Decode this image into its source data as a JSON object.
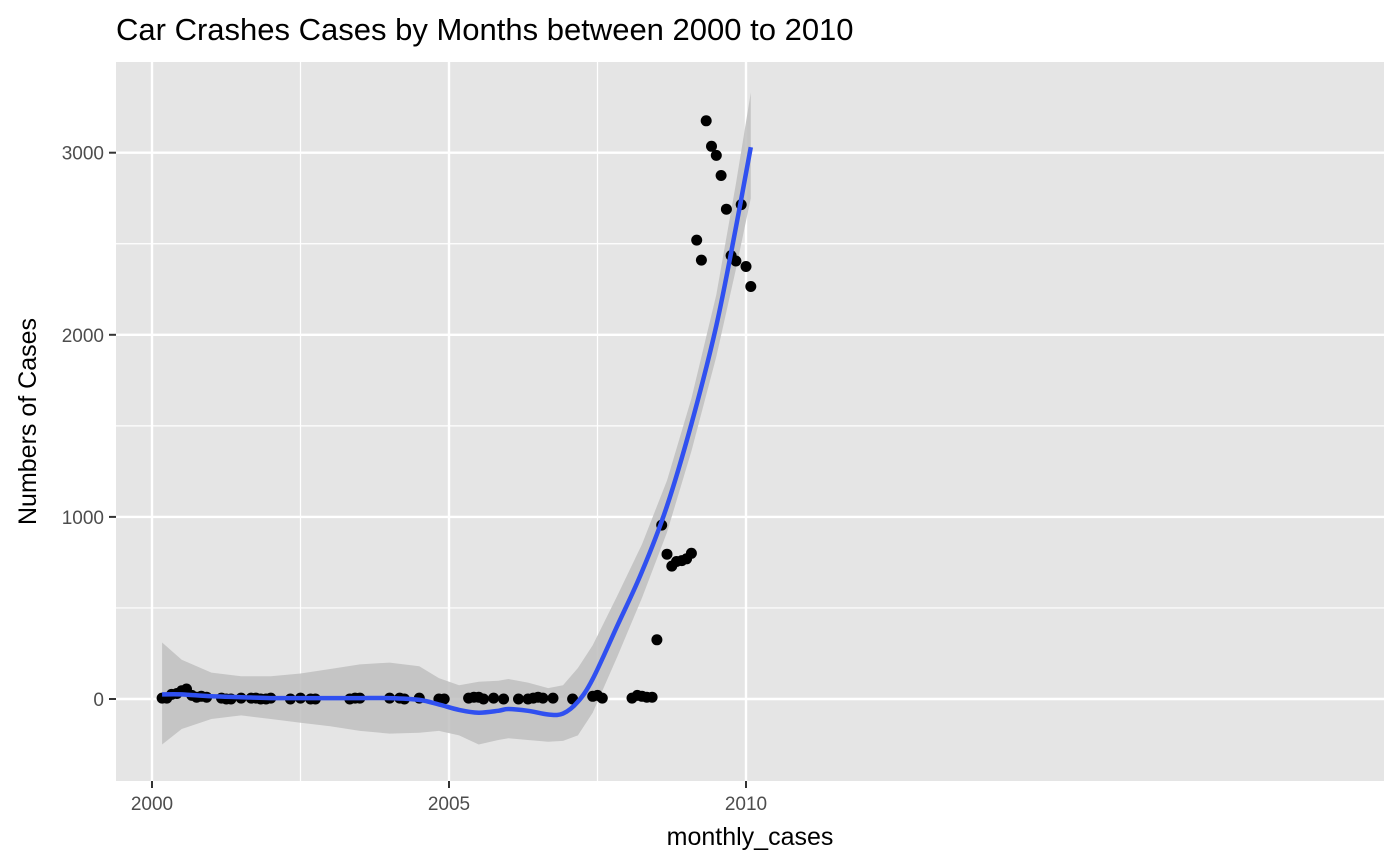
{
  "chart_data": {
    "type": "scatter",
    "title": "Car Crashes Cases by Months between 2000 to 2010",
    "xlabel": "monthly_cases",
    "ylabel": "Numbers of Cases",
    "xlim": [
      1999.65,
      2010.7
    ],
    "ylim": [
      -450,
      3500
    ],
    "x_ticks": [
      {
        "value": 2000,
        "label": "2000"
      },
      {
        "value": 2005,
        "label": "2005"
      },
      {
        "value": 2010,
        "label": "2010"
      }
    ],
    "y_ticks": [
      {
        "value": 0,
        "label": "0"
      },
      {
        "value": 1000,
        "label": "1000"
      },
      {
        "value": 2000,
        "label": "2000"
      },
      {
        "value": 3000,
        "label": "3000"
      }
    ],
    "x_minor_grid": [
      2002.5,
      2007.5
    ],
    "y_minor_grid": [
      500,
      1500,
      2500
    ],
    "grid": true,
    "legend": "none",
    "colors": {
      "panel": "#E5E5E5",
      "grid": "#FFFFFF",
      "points": "#000000",
      "smooth_line": "#3050F0",
      "ribbon": "#BFBFBF"
    },
    "series": [
      {
        "name": "monthly cases",
        "points": [
          {
            "x": 2000.17,
            "y": 5
          },
          {
            "x": 2000.25,
            "y": 5
          },
          {
            "x": 2000.33,
            "y": 25
          },
          {
            "x": 2000.42,
            "y": 30
          },
          {
            "x": 2000.5,
            "y": 45
          },
          {
            "x": 2000.58,
            "y": 55
          },
          {
            "x": 2000.67,
            "y": 20
          },
          {
            "x": 2000.75,
            "y": 10
          },
          {
            "x": 2000.83,
            "y": 15
          },
          {
            "x": 2000.92,
            "y": 10
          },
          {
            "x": 2001.17,
            "y": 5
          },
          {
            "x": 2001.25,
            "y": 0
          },
          {
            "x": 2001.33,
            "y": 0
          },
          {
            "x": 2001.5,
            "y": 5
          },
          {
            "x": 2001.67,
            "y": 5
          },
          {
            "x": 2001.75,
            "y": 5
          },
          {
            "x": 2001.83,
            "y": 0
          },
          {
            "x": 2001.92,
            "y": 0
          },
          {
            "x": 2002.0,
            "y": 5
          },
          {
            "x": 2002.33,
            "y": 0
          },
          {
            "x": 2002.5,
            "y": 5
          },
          {
            "x": 2002.67,
            "y": 0
          },
          {
            "x": 2002.75,
            "y": 0
          },
          {
            "x": 2003.33,
            "y": 0
          },
          {
            "x": 2003.42,
            "y": 5
          },
          {
            "x": 2003.5,
            "y": 5
          },
          {
            "x": 2004.0,
            "y": 5
          },
          {
            "x": 2004.17,
            "y": 5
          },
          {
            "x": 2004.25,
            "y": 0
          },
          {
            "x": 2004.5,
            "y": 5
          },
          {
            "x": 2004.83,
            "y": 0
          },
          {
            "x": 2004.92,
            "y": 0
          },
          {
            "x": 2005.33,
            "y": 5
          },
          {
            "x": 2005.42,
            "y": 10
          },
          {
            "x": 2005.5,
            "y": 10
          },
          {
            "x": 2005.58,
            "y": 0
          },
          {
            "x": 2005.75,
            "y": 5
          },
          {
            "x": 2005.92,
            "y": 0
          },
          {
            "x": 2006.17,
            "y": 0
          },
          {
            "x": 2006.33,
            "y": 0
          },
          {
            "x": 2006.42,
            "y": 5
          },
          {
            "x": 2006.5,
            "y": 10
          },
          {
            "x": 2006.58,
            "y": 5
          },
          {
            "x": 2006.75,
            "y": 5
          },
          {
            "x": 2007.08,
            "y": 0
          },
          {
            "x": 2007.42,
            "y": 15
          },
          {
            "x": 2007.5,
            "y": 20
          },
          {
            "x": 2007.58,
            "y": 5
          },
          {
            "x": 2008.08,
            "y": 5
          },
          {
            "x": 2008.17,
            "y": 20
          },
          {
            "x": 2008.25,
            "y": 15
          },
          {
            "x": 2008.33,
            "y": 10
          },
          {
            "x": 2008.42,
            "y": 10
          },
          {
            "x": 2008.5,
            "y": 325
          },
          {
            "x": 2008.58,
            "y": 955
          },
          {
            "x": 2008.67,
            "y": 795
          },
          {
            "x": 2008.75,
            "y": 730
          },
          {
            "x": 2008.83,
            "y": 755
          },
          {
            "x": 2008.92,
            "y": 760
          },
          {
            "x": 2009.0,
            "y": 770
          },
          {
            "x": 2009.08,
            "y": 800
          },
          {
            "x": 2009.17,
            "y": 2520
          },
          {
            "x": 2009.25,
            "y": 2410
          },
          {
            "x": 2009.33,
            "y": 3175
          },
          {
            "x": 2009.42,
            "y": 3035
          },
          {
            "x": 2009.5,
            "y": 2985
          },
          {
            "x": 2009.58,
            "y": 2875
          },
          {
            "x": 2009.67,
            "y": 2690
          },
          {
            "x": 2009.75,
            "y": 2435
          },
          {
            "x": 2009.83,
            "y": 2405
          },
          {
            "x": 2009.92,
            "y": 2715
          },
          {
            "x": 2010.0,
            "y": 2375
          },
          {
            "x": 2010.08,
            "y": 2265
          }
        ]
      }
    ],
    "smooth": {
      "method": "loess",
      "points": [
        {
          "x": 2000.17,
          "y": 25,
          "ymin": -250,
          "ymax": 310
        },
        {
          "x": 2000.5,
          "y": 25,
          "ymin": -165,
          "ymax": 215
        },
        {
          "x": 2001.0,
          "y": 15,
          "ymin": -110,
          "ymax": 145
        },
        {
          "x": 2001.5,
          "y": 10,
          "ymin": -90,
          "ymax": 125
        },
        {
          "x": 2002.0,
          "y": 5,
          "ymin": -110,
          "ymax": 125
        },
        {
          "x": 2002.5,
          "y": 5,
          "ymin": -130,
          "ymax": 140
        },
        {
          "x": 2003.0,
          "y": 5,
          "ymin": -150,
          "ymax": 165
        },
        {
          "x": 2003.5,
          "y": 5,
          "ymin": -175,
          "ymax": 190
        },
        {
          "x": 2004.0,
          "y": 5,
          "ymin": -190,
          "ymax": 200
        },
        {
          "x": 2004.5,
          "y": -5,
          "ymin": -185,
          "ymax": 180
        },
        {
          "x": 2004.83,
          "y": -30,
          "ymin": -175,
          "ymax": 115
        },
        {
          "x": 2005.17,
          "y": -60,
          "ymin": -200,
          "ymax": 75
        },
        {
          "x": 2005.5,
          "y": -75,
          "ymin": -250,
          "ymax": 95
        },
        {
          "x": 2005.83,
          "y": -65,
          "ymin": -225,
          "ymax": 100
        },
        {
          "x": 2006.0,
          "y": -55,
          "ymin": -215,
          "ymax": 110
        },
        {
          "x": 2006.33,
          "y": -65,
          "ymin": -225,
          "ymax": 90
        },
        {
          "x": 2006.67,
          "y": -85,
          "ymin": -235,
          "ymax": 60
        },
        {
          "x": 2006.92,
          "y": -80,
          "ymin": -230,
          "ymax": 75
        },
        {
          "x": 2007.17,
          "y": -15,
          "ymin": -200,
          "ymax": 170
        },
        {
          "x": 2007.42,
          "y": 110,
          "ymin": -75,
          "ymax": 295
        },
        {
          "x": 2007.83,
          "y": 400,
          "ymin": 230,
          "ymax": 565
        },
        {
          "x": 2008.25,
          "y": 700,
          "ymin": 555,
          "ymax": 850
        },
        {
          "x": 2008.67,
          "y": 1060,
          "ymin": 915,
          "ymax": 1200
        },
        {
          "x": 2009.08,
          "y": 1510,
          "ymin": 1360,
          "ymax": 1650
        },
        {
          "x": 2009.5,
          "y": 2050,
          "ymin": 1880,
          "ymax": 2220
        },
        {
          "x": 2009.83,
          "y": 2590,
          "ymin": 2360,
          "ymax": 2830
        },
        {
          "x": 2010.08,
          "y": 3030,
          "ymin": 2750,
          "ymax": 3330
        }
      ]
    }
  }
}
